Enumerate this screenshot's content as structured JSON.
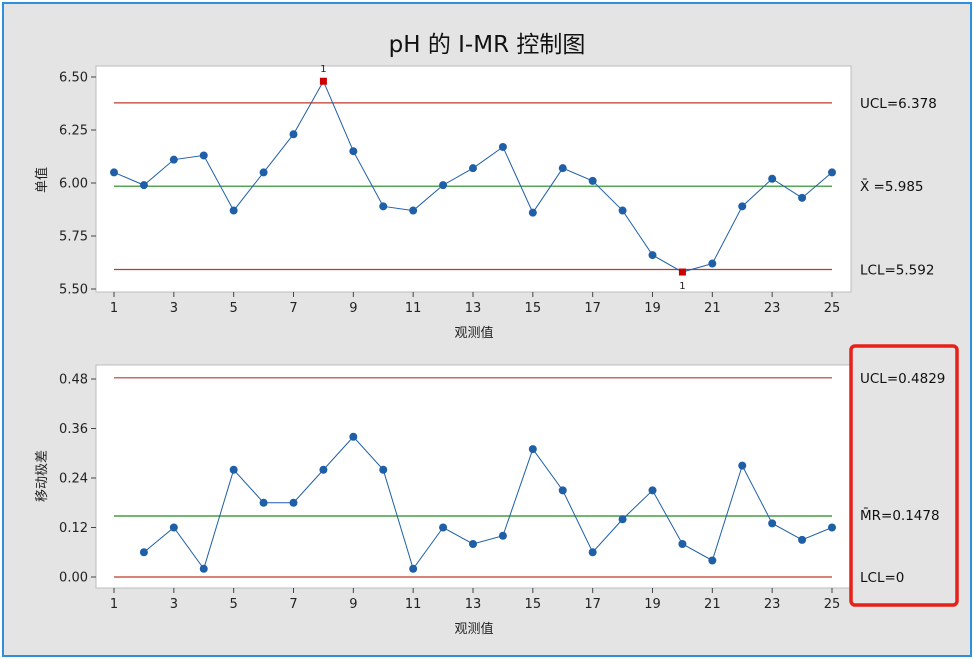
{
  "chart_data": [
    {
      "type": "line",
      "title": "pH 的 I-MR 控制图",
      "xlabel": "观测值",
      "ylabel": "单值",
      "x": [
        1,
        2,
        3,
        4,
        5,
        6,
        7,
        8,
        9,
        10,
        11,
        12,
        13,
        14,
        15,
        16,
        17,
        18,
        19,
        20,
        21,
        22,
        23,
        24,
        25
      ],
      "xticks": [
        1,
        3,
        5,
        7,
        9,
        11,
        13,
        15,
        17,
        19,
        21,
        23,
        25
      ],
      "yticks": [
        "5.50",
        "5.75",
        "6.00",
        "6.25",
        "6.50"
      ],
      "ylim": [
        5.5,
        6.5
      ],
      "series": [
        {
          "values": [
            6.05,
            5.99,
            6.11,
            6.13,
            5.87,
            6.05,
            6.23,
            6.48,
            6.15,
            5.89,
            5.87,
            5.99,
            6.07,
            6.17,
            5.86,
            6.07,
            6.01,
            5.87,
            5.66,
            5.58,
            5.62,
            5.89,
            6.02,
            5.93,
            6.05
          ],
          "color": "#1f5fa8"
        }
      ],
      "limits": {
        "ucl": {
          "value": 6.378,
          "label": "UCL=6.378",
          "color": "#c0392b"
        },
        "center": {
          "value": 5.985,
          "label": "X̄ =5.985",
          "color": "#1e8a1e"
        },
        "lcl": {
          "value": 5.592,
          "label": "LCL=5.592",
          "color": "#c0392b"
        }
      },
      "flagged": [
        {
          "x": 8,
          "label": "1",
          "position": "above"
        },
        {
          "x": 20,
          "label": "1",
          "position": "below"
        }
      ],
      "flag_color": "#cc0000",
      "grid": false
    },
    {
      "type": "line",
      "xlabel": "观测值",
      "ylabel": "移动极差",
      "x": [
        1,
        2,
        3,
        4,
        5,
        6,
        7,
        8,
        9,
        10,
        11,
        12,
        13,
        14,
        15,
        16,
        17,
        18,
        19,
        20,
        21,
        22,
        23,
        24,
        25
      ],
      "xticks": [
        1,
        3,
        5,
        7,
        9,
        11,
        13,
        15,
        17,
        19,
        21,
        23,
        25
      ],
      "yticks": [
        "0.00",
        "0.12",
        "0.24",
        "0.36",
        "0.48"
      ],
      "ylim": [
        0,
        0.48
      ],
      "series": [
        {
          "values": [
            null,
            0.06,
            0.12,
            0.02,
            0.26,
            0.18,
            0.18,
            0.26,
            0.34,
            0.26,
            0.02,
            0.12,
            0.08,
            0.1,
            0.31,
            0.21,
            0.06,
            0.14,
            0.21,
            0.08,
            0.04,
            0.27,
            0.13,
            0.09,
            0.12
          ],
          "color": "#1f5fa8"
        }
      ],
      "limits": {
        "ucl": {
          "value": 0.4829,
          "label": "UCL=0.4829",
          "color": "#c0392b"
        },
        "center": {
          "value": 0.1478,
          "label": "M̄R=0.1478",
          "color": "#1e8a1e"
        },
        "lcl": {
          "value": 0,
          "label": "LCL=0",
          "color": "#c0392b"
        }
      },
      "grid": false
    }
  ],
  "highlight": {
    "color": "#e8201a",
    "target": "mr-limit-labels"
  }
}
